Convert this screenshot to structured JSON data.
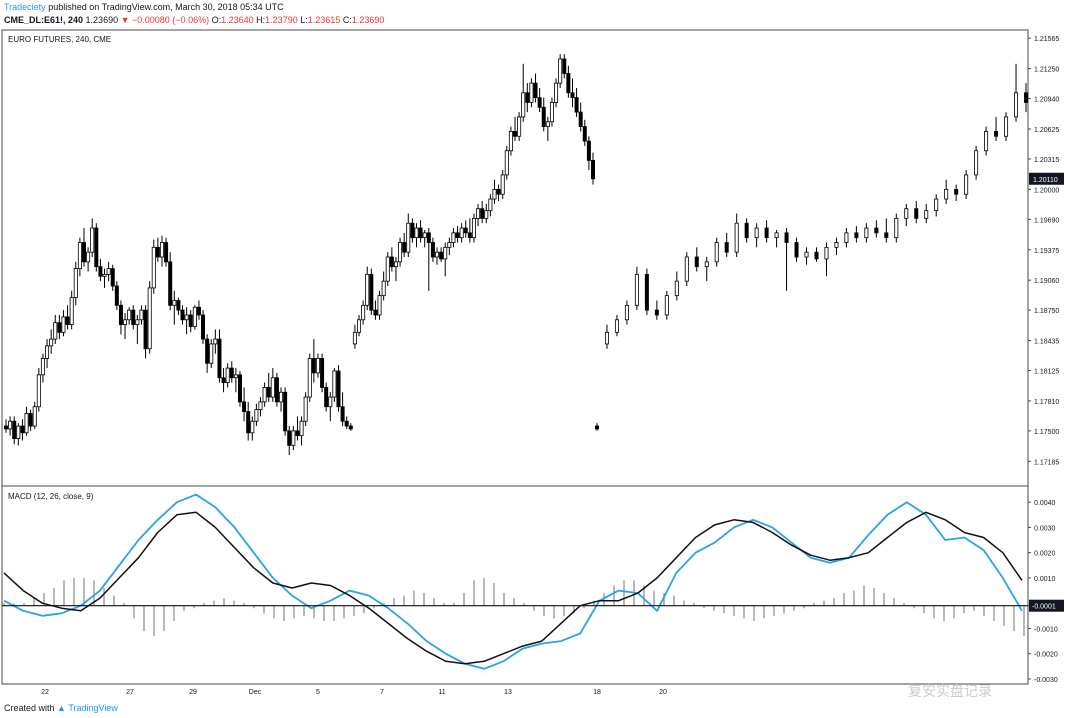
{
  "header": {
    "author": "Tradeciety",
    "published": "published on TradingView.com, March 30, 2018 05:34 UTC",
    "symbol": "CME_DL:E61!, 240",
    "last": "1.23690",
    "change": "▼ −0.00080 (−0.06%)",
    "o_label": "O:",
    "o": "1.23640",
    "h_label": "H:",
    "h": "1.23790",
    "l_label": "L:",
    "l": "1.23615",
    "c_label": "C:",
    "c": "1.23690"
  },
  "footer": {
    "created": "Created with",
    "brand": "TradingView"
  },
  "watermark": "复安实盘记录",
  "colors": {
    "up": "#ffffff",
    "down": "#000000",
    "macd": "#29a3e6",
    "signal": "#111111",
    "hist": "#999999",
    "accent": "#2196f3",
    "red": "#e53935"
  },
  "chart_data": [
    {
      "type": "candlestick",
      "title": "EURO FUTURES, 240, CME",
      "ylim": [
        1.1695,
        1.2165
      ],
      "y_ticks": [
        1.21565,
        1.2125,
        1.2094,
        1.20625,
        1.20315,
        1.2,
        1.1969,
        1.19375,
        1.1906,
        1.1875,
        1.18435,
        1.18125,
        1.1781,
        1.175,
        1.17185
      ],
      "y_tick_labels": [
        "1.21565",
        "1.21250",
        "1.20940",
        "1.20625",
        "1.20315",
        "1.20000",
        "1.19690",
        "1.19375",
        "1.19060",
        "1.18750",
        "1.18435",
        "1.18125",
        "1.17810",
        "1.17500",
        "1.17185"
      ],
      "last_price_label": "1.20110",
      "x_tick_labels": [
        "22",
        "27",
        "29",
        "Dec",
        "5",
        "7",
        "11",
        "13",
        "18",
        "20",
        "",
        "",
        "",
        ""
      ],
      "ohlc": [
        [
          1.1755,
          1.1762,
          1.1748,
          1.1752
        ],
        [
          1.1752,
          1.1765,
          1.1745,
          1.176
        ],
        [
          1.176,
          1.1765,
          1.1736,
          1.1742
        ],
        [
          1.1742,
          1.1758,
          1.1735,
          1.1755
        ],
        [
          1.1755,
          1.1762,
          1.174,
          1.1748
        ],
        [
          1.1748,
          1.1775,
          1.1745,
          1.1768
        ],
        [
          1.1768,
          1.1772,
          1.175,
          1.1755
        ],
        [
          1.1755,
          1.178,
          1.1752,
          1.1775
        ],
        [
          1.1775,
          1.1815,
          1.177,
          1.1808
        ],
        [
          1.1808,
          1.183,
          1.18,
          1.1825
        ],
        [
          1.1825,
          1.1845,
          1.1815,
          1.1838
        ],
        [
          1.1838,
          1.1855,
          1.183,
          1.1845
        ],
        [
          1.1845,
          1.187,
          1.184,
          1.1862
        ],
        [
          1.1862,
          1.187,
          1.1845,
          1.1852
        ],
        [
          1.1852,
          1.1875,
          1.1848,
          1.1868
        ],
        [
          1.1868,
          1.188,
          1.1855,
          1.186
        ],
        [
          1.186,
          1.1895,
          1.1855,
          1.1888
        ],
        [
          1.1888,
          1.1925,
          1.188,
          1.1918
        ],
        [
          1.1918,
          1.195,
          1.191,
          1.1945
        ],
        [
          1.1945,
          1.196,
          1.192,
          1.1925
        ],
        [
          1.1925,
          1.194,
          1.1915,
          1.1935
        ],
        [
          1.1935,
          1.197,
          1.193,
          1.196
        ],
        [
          1.196,
          1.1965,
          1.1915,
          1.192
        ],
        [
          1.192,
          1.1928,
          1.1905,
          1.191
        ],
        [
          1.191,
          1.1918,
          1.1898,
          1.1912
        ],
        [
          1.1912,
          1.1925,
          1.1905,
          1.1918
        ],
        [
          1.1918,
          1.1922,
          1.1895,
          1.19
        ],
        [
          1.19,
          1.1905,
          1.1875,
          1.188
        ],
        [
          1.188,
          1.1885,
          1.185,
          1.186
        ],
        [
          1.186,
          1.1872,
          1.1845,
          1.1865
        ],
        [
          1.1865,
          1.1878,
          1.186,
          1.1875
        ],
        [
          1.1875,
          1.188,
          1.1855,
          1.186
        ],
        [
          1.186,
          1.187,
          1.184,
          1.1865
        ],
        [
          1.1865,
          1.188,
          1.186,
          1.1875
        ],
        [
          1.1875,
          1.188,
          1.1825,
          1.1835
        ],
        [
          1.1835,
          1.1905,
          1.183,
          1.1898
        ],
        [
          1.1898,
          1.1948,
          1.1892,
          1.194
        ],
        [
          1.194,
          1.195,
          1.1925,
          1.193
        ],
        [
          1.193,
          1.1952,
          1.192,
          1.1945
        ],
        [
          1.1945,
          1.195,
          1.192,
          1.1925
        ],
        [
          1.1925,
          1.1935,
          1.1875,
          1.188
        ],
        [
          1.188,
          1.1895,
          1.186,
          1.1885
        ],
        [
          1.1885,
          1.1888,
          1.187,
          1.1875
        ],
        [
          1.1875,
          1.188,
          1.186,
          1.1865
        ],
        [
          1.1865,
          1.1878,
          1.185,
          1.187
        ],
        [
          1.187,
          1.1875,
          1.1852,
          1.1858
        ],
        [
          1.1858,
          1.188,
          1.1855,
          1.1878
        ],
        [
          1.1878,
          1.1885,
          1.1865,
          1.187
        ],
        [
          1.187,
          1.1875,
          1.184,
          1.1845
        ],
        [
          1.1845,
          1.185,
          1.181,
          1.182
        ],
        [
          1.182,
          1.1845,
          1.1815,
          1.184
        ],
        [
          1.184,
          1.1855,
          1.183,
          1.1845
        ],
        [
          1.1845,
          1.1855,
          1.18,
          1.1805
        ],
        [
          1.1805,
          1.1815,
          1.179,
          1.18
        ],
        [
          1.18,
          1.182,
          1.1795,
          1.1815
        ],
        [
          1.1815,
          1.1822,
          1.18,
          1.1805
        ],
        [
          1.1805,
          1.1815,
          1.179,
          1.1808
        ],
        [
          1.1808,
          1.1812,
          1.1775,
          1.178
        ],
        [
          1.178,
          1.1795,
          1.176,
          1.177
        ],
        [
          1.177,
          1.178,
          1.174,
          1.1748
        ],
        [
          1.1748,
          1.1765,
          1.174,
          1.176
        ],
        [
          1.176,
          1.1778,
          1.1755,
          1.1772
        ],
        [
          1.1772,
          1.1785,
          1.1765,
          1.178
        ],
        [
          1.178,
          1.18,
          1.1775,
          1.1795
        ],
        [
          1.1795,
          1.181,
          1.178,
          1.1785
        ],
        [
          1.1785,
          1.1815,
          1.178,
          1.1805
        ],
        [
          1.1805,
          1.181,
          1.1775,
          1.178
        ],
        [
          1.178,
          1.1795,
          1.177,
          1.179
        ],
        [
          1.179,
          1.1795,
          1.1745,
          1.175
        ],
        [
          1.175,
          1.1755,
          1.1725,
          1.1735
        ],
        [
          1.1735,
          1.1755,
          1.173,
          1.175
        ],
        [
          1.175,
          1.1765,
          1.174,
          1.1745
        ],
        [
          1.1745,
          1.1765,
          1.1735,
          1.176
        ],
        [
          1.176,
          1.179,
          1.1755,
          1.1785
        ],
        [
          1.1785,
          1.183,
          1.178,
          1.1825
        ],
        [
          1.1825,
          1.1845,
          1.18,
          1.181
        ],
        [
          1.181,
          1.183,
          1.1805,
          1.1825
        ],
        [
          1.1825,
          1.183,
          1.179,
          1.1795
        ],
        [
          1.1795,
          1.18,
          1.177,
          1.1775
        ],
        [
          1.1775,
          1.179,
          1.176,
          1.1785
        ],
        [
          1.1785,
          1.1815,
          1.178,
          1.1812
        ],
        [
          1.1812,
          1.1818,
          1.177,
          1.1775
        ],
        [
          1.1775,
          1.179,
          1.1755,
          1.176
        ],
        [
          1.176,
          1.1765,
          1.1752,
          1.1755
        ],
        [
          1.1755,
          1.1758,
          1.175,
          1.1752
        ],
        [
          1.184,
          1.186,
          1.1835,
          1.1852
        ],
        [
          1.1852,
          1.187,
          1.1848,
          1.1865
        ],
        [
          1.1865,
          1.1885,
          1.186,
          1.188
        ],
        [
          1.188,
          1.192,
          1.1875,
          1.1912
        ],
        [
          1.1912,
          1.1918,
          1.187,
          1.1875
        ],
        [
          1.1875,
          1.1885,
          1.1865,
          1.187
        ],
        [
          1.187,
          1.1895,
          1.1865,
          1.189
        ],
        [
          1.189,
          1.1915,
          1.1885,
          1.1905
        ],
        [
          1.1905,
          1.1935,
          1.19,
          1.193
        ],
        [
          1.193,
          1.194,
          1.1915,
          1.192
        ],
        [
          1.192,
          1.193,
          1.1905,
          1.1925
        ],
        [
          1.1925,
          1.195,
          1.192,
          1.1945
        ],
        [
          1.1945,
          1.1955,
          1.193,
          1.1935
        ],
        [
          1.1935,
          1.1975,
          1.193,
          1.1965
        ],
        [
          1.1965,
          1.197,
          1.1945,
          1.195
        ],
        [
          1.195,
          1.1965,
          1.194,
          1.196
        ],
        [
          1.196,
          1.1968,
          1.1945,
          1.195
        ],
        [
          1.195,
          1.1958,
          1.194,
          1.1955
        ],
        [
          1.1955,
          1.196,
          1.1895,
          1.1945
        ],
        [
          1.1945,
          1.195,
          1.1925,
          1.193
        ],
        [
          1.193,
          1.194,
          1.1922,
          1.1935
        ],
        [
          1.1935,
          1.194,
          1.1925,
          1.1928
        ],
        [
          1.1928,
          1.1945,
          1.191,
          1.194
        ],
        [
          1.194,
          1.195,
          1.1932,
          1.1945
        ],
        [
          1.1945,
          1.196,
          1.194,
          1.1955
        ],
        [
          1.1955,
          1.1962,
          1.1945,
          1.195
        ],
        [
          1.195,
          1.1965,
          1.1945,
          1.196
        ],
        [
          1.196,
          1.1968,
          1.195,
          1.1955
        ],
        [
          1.1955,
          1.197,
          1.1945,
          1.195
        ],
        [
          1.195,
          1.1975,
          1.1945,
          1.197
        ],
        [
          1.197,
          1.1985,
          1.1962,
          1.198
        ],
        [
          1.198,
          1.1988,
          1.1965,
          1.197
        ],
        [
          1.197,
          1.1985,
          1.1965,
          1.1978
        ],
        [
          1.1978,
          1.1995,
          1.1972,
          1.199
        ],
        [
          1.199,
          1.201,
          1.1985,
          1.2
        ],
        [
          1.2,
          1.2005,
          1.1988,
          1.1995
        ],
        [
          1.1995,
          1.202,
          1.199,
          1.2015
        ],
        [
          1.2015,
          1.2045,
          1.201,
          1.204
        ],
        [
          1.204,
          1.2065,
          1.2035,
          1.206
        ],
        [
          1.206,
          1.2075,
          1.205,
          1.2055
        ],
        [
          1.2055,
          1.208,
          1.205,
          1.2075
        ],
        [
          1.2075,
          1.213,
          1.207,
          1.21
        ],
        [
          1.21,
          1.211,
          1.208,
          1.209
        ],
        [
          1.209,
          1.2115,
          1.2085,
          1.211
        ],
        [
          1.211,
          1.212,
          1.209,
          1.2095
        ],
        [
          1.2095,
          1.2105,
          1.208,
          1.2085
        ],
        [
          1.2085,
          1.2095,
          1.206,
          1.2065
        ],
        [
          1.2065,
          1.2075,
          1.205,
          1.207
        ],
        [
          1.207,
          1.2095,
          1.2065,
          1.209
        ],
        [
          1.209,
          1.2115,
          1.2085,
          1.211
        ],
        [
          1.211,
          1.214,
          1.2105,
          1.2135
        ],
        [
          1.2135,
          1.214,
          1.2115,
          1.212
        ],
        [
          1.212,
          1.2128,
          1.2095,
          1.21
        ],
        [
          1.21,
          1.2115,
          1.2085,
          1.2095
        ],
        [
          1.2095,
          1.2105,
          1.2075,
          1.208
        ],
        [
          1.208,
          1.209,
          1.206,
          1.2065
        ],
        [
          1.2065,
          1.2072,
          1.2045,
          1.205
        ],
        [
          1.205,
          1.2055,
          1.202,
          1.203
        ],
        [
          1.203,
          1.2038,
          1.2005,
          1.2011
        ]
      ]
    },
    {
      "type": "line",
      "title": "MACD (12, 26, close, 9)",
      "ylim": [
        -0.0032,
        0.0046
      ],
      "y_ticks": [
        0.004,
        0.003,
        0.002,
        0.001,
        -0.0001,
        -0.001,
        -0.002,
        -0.003
      ],
      "y_tick_labels": [
        "0.0040",
        "0.0030",
        "0.0020",
        "0.0010",
        "-0.0001",
        "-0.0010",
        "-0.0020",
        "-0.0030"
      ],
      "series": [
        {
          "values": [
            0.0001,
            -0.0003,
            -0.0005,
            -0.0004,
            -0.0001,
            0.0005,
            0.0015,
            0.0025,
            0.0033,
            0.004,
            0.0043,
            0.0038,
            0.003,
            0.002,
            0.001,
            0.0003,
            -0.0002,
            0.0001,
            0.0005,
            0.0003,
            -0.0002,
            -0.0008,
            -0.0015,
            -0.002,
            -0.0024,
            -0.0026,
            -0.0023,
            -0.0018,
            -0.0016,
            -0.0015,
            -0.0012,
            0.0001,
            0.0005,
            0.0004,
            -0.0003,
            0.0012,
            0.002,
            0.0024,
            0.003,
            0.0033,
            0.003,
            0.0024,
            0.0018,
            0.0016,
            0.0018,
            0.0027,
            0.0035,
            0.004,
            0.0035,
            0.0025,
            0.0026,
            0.0021,
            0.001,
            -0.0003
          ]
        },
        {
          "values": [
            0.0012,
            0.0005,
            0.0,
            -0.0002,
            -0.0003,
            0.0002,
            0.001,
            0.0018,
            0.0028,
            0.0035,
            0.0036,
            0.003,
            0.0022,
            0.0014,
            0.0008,
            0.0006,
            0.0008,
            0.0007,
            0.0003,
            -0.0002,
            -0.0008,
            -0.0014,
            -0.0019,
            -0.0023,
            -0.0024,
            -0.0023,
            -0.002,
            -0.0017,
            -0.0015,
            -0.0008,
            -0.0001,
            0.0001,
            0.0001,
            0.0004,
            0.001,
            0.0018,
            0.0026,
            0.0031,
            0.0033,
            0.0032,
            0.0028,
            0.0023,
            0.0019,
            0.0017,
            0.0018,
            0.002,
            0.0026,
            0.0032,
            0.0036,
            0.0033,
            0.0028,
            0.0026,
            0.002,
            0.0009
          ]
        }
      ],
      "histogram": [
        0.0001,
        0.0001,
        0.0001,
        0.0003,
        0.0005,
        0.0007,
        0.001,
        0.0011,
        0.0011,
        0.001,
        0.0007,
        0.0004,
        0.0001,
        -0.0005,
        -0.001,
        -0.0012,
        -0.001,
        -0.0006,
        -0.0002,
        -0.0001,
        0.0001,
        0.0002,
        0.0003,
        0.0002,
        0.0001,
        -0.0001,
        -0.0003,
        -0.0005,
        -0.0006,
        -0.0005,
        -0.0004,
        -0.0005,
        -0.0006,
        -0.0006,
        -0.0005,
        -0.0004,
        -0.0003,
        -0.0001,
        0.0001,
        0.0003,
        0.0004,
        0.0006,
        0.0005,
        0.0003,
        0.0001,
        0.0001,
        0.0005,
        0.001,
        0.0011,
        0.0009,
        0.0005,
        0.0003,
        0.0001,
        -0.0002,
        -0.0004,
        -0.0005,
        -0.0004,
        -0.0003,
        -0.0001,
        0.0002,
        0.0005,
        0.0008,
        0.001,
        0.001,
        0.0008,
        0.0006,
        0.0005,
        0.0004,
        0.0002,
        0.0001,
        -0.0001,
        -0.0002,
        -0.0003,
        -0.0004,
        -0.0005,
        -0.0006,
        -0.0005,
        -0.0004,
        -0.0003,
        -0.0002,
        -0.0001,
        0.0001,
        0.0002,
        0.0003,
        0.0005,
        0.0006,
        0.0008,
        0.0007,
        0.0005,
        0.0003,
        0.0001,
        -0.0001,
        -0.0003,
        -0.0005,
        -0.0006,
        -0.0005,
        -0.0003,
        -0.0002,
        -0.0004,
        -0.0006,
        -0.0008,
        -0.001,
        -0.0012
      ]
    }
  ]
}
